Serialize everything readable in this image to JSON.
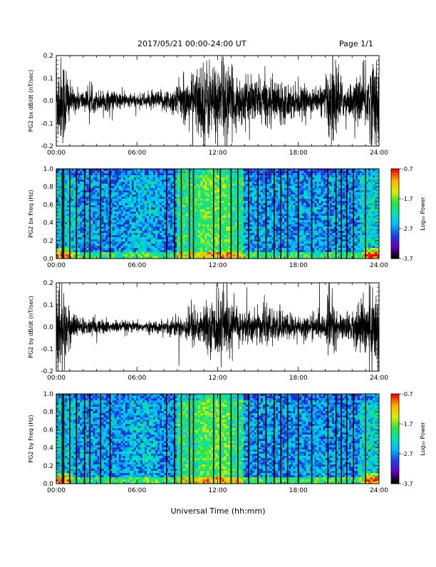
{
  "header": {
    "title": "2017/05/21   00:00-24:00 UT",
    "page_label": "Page 1/1"
  },
  "x_axis_title": "Universal Time (hh:mm)",
  "colors": {
    "waveform": "#000000",
    "spectrogram_background": "#1630c8",
    "colormap": [
      "#000000",
      "#6a00b8",
      "#1d3fe8",
      "#00b7ff",
      "#00e6b5",
      "#2fe43c",
      "#d8ef00",
      "#ffb000",
      "#ff0000"
    ]
  },
  "chart_data": [
    {
      "type": "line",
      "panel": "top waveform",
      "title": "",
      "ylabel": "PG2 bx dB/dt (nT/sec)",
      "xlabel": "",
      "x_ticks": [
        "00:00",
        "06:00",
        "12:00",
        "18:00",
        "24:00"
      ],
      "y_ticks": [
        "0.2",
        "0.1",
        "0.0",
        "-0.1",
        "-0.2"
      ],
      "xlim": [
        0,
        24
      ],
      "ylim": [
        -0.2,
        0.2
      ],
      "grid": false,
      "series": [
        {
          "values_desc": "dense waveform",
          "envelope_hours": [
            0,
            0.7,
            1.1,
            2,
            3,
            4,
            5,
            6,
            7,
            8,
            8.5,
            9,
            10,
            10.5,
            11,
            11.8,
            12,
            12.5,
            13,
            14,
            14.5,
            15,
            16,
            16.5,
            17,
            18,
            19,
            20,
            20.3,
            20.8,
            21.3,
            22,
            22.5,
            23,
            23.5,
            24
          ],
          "envelope_amplitude": [
            0.21,
            0.21,
            0.06,
            0.05,
            0.05,
            0.05,
            0.04,
            0.03,
            0.04,
            0.05,
            0.06,
            0.08,
            0.11,
            0.17,
            0.2,
            0.18,
            0.17,
            0.2,
            0.14,
            0.11,
            0.1,
            0.11,
            0.1,
            0.1,
            0.09,
            0.07,
            0.06,
            0.07,
            0.21,
            0.2,
            0.08,
            0.08,
            0.1,
            0.16,
            0.2,
            0.21
          ]
        }
      ]
    },
    {
      "type": "heatmap",
      "panel": "top spectrogram",
      "title": "",
      "ylabel": "PG2 bx Freq (Hz)",
      "xlabel": "",
      "x_ticks": [
        "00:00",
        "06:00",
        "12:00",
        "18:00",
        "24:00"
      ],
      "y_ticks": [
        "1.0",
        "0.8",
        "0.6",
        "0.4",
        "0.2",
        "0.0"
      ],
      "xlim": [
        0,
        24
      ],
      "ylim": [
        0.0,
        1.0
      ],
      "colorbar": {
        "label": "Log₁₀ Power",
        "ticks": [
          "-0.7",
          "-1.7",
          "-2.7",
          "-3.7"
        ],
        "range": [
          -3.7,
          -0.7
        ]
      },
      "vertical_lines_hours": [
        0.45,
        0.55,
        1.0,
        1.5,
        2.1,
        2.5,
        3.3,
        4.0,
        8.2,
        8.8,
        9.3,
        9.9,
        10.2,
        11.7,
        12.2,
        13.0,
        13.5,
        14.3,
        15.0,
        15.6,
        16.2,
        16.7,
        17.2,
        18.0,
        19.0,
        20.2,
        20.8,
        21.2,
        21.6,
        22.1,
        23.0
      ]
    },
    {
      "type": "line",
      "panel": "bottom waveform",
      "title": "",
      "ylabel": "PG2 by dB/dt (nT/sec)",
      "xlabel": "",
      "x_ticks": [
        "00:00",
        "06:00",
        "12:00",
        "18:00",
        "24:00"
      ],
      "y_ticks": [
        "0.2",
        "0.1",
        "0.0",
        "-0.1",
        "-0.2"
      ],
      "xlim": [
        0,
        24
      ],
      "ylim": [
        -0.2,
        0.2
      ],
      "grid": false,
      "series": [
        {
          "values_desc": "dense waveform",
          "envelope_hours": [
            0,
            0.5,
            0.9,
            1.5,
            2,
            3,
            4,
            5,
            6,
            7,
            8,
            8.5,
            9,
            9.5,
            10,
            11,
            11.5,
            12,
            12.3,
            13,
            14,
            15,
            16,
            17,
            18,
            19,
            20,
            20.3,
            20.8,
            21.3,
            22,
            22.5,
            23,
            23.5,
            24
          ],
          "envelope_amplitude": [
            0.21,
            0.21,
            0.12,
            0.05,
            0.04,
            0.04,
            0.03,
            0.03,
            0.025,
            0.025,
            0.03,
            0.04,
            0.05,
            0.06,
            0.09,
            0.1,
            0.11,
            0.15,
            0.2,
            0.1,
            0.08,
            0.08,
            0.08,
            0.07,
            0.06,
            0.05,
            0.06,
            0.2,
            0.08,
            0.06,
            0.07,
            0.12,
            0.15,
            0.2,
            0.2
          ]
        }
      ]
    },
    {
      "type": "heatmap",
      "panel": "bottom spectrogram",
      "title": "",
      "ylabel": "PG2 by Freq (Hz)",
      "xlabel": "",
      "x_ticks": [
        "00:00",
        "06:00",
        "12:00",
        "18:00",
        "24:00"
      ],
      "y_ticks": [
        "1.0",
        "0.8",
        "0.6",
        "0.4",
        "0.2",
        "0.0"
      ],
      "xlim": [
        0,
        24
      ],
      "ylim": [
        0.0,
        1.0
      ],
      "colorbar": {
        "label": "Log₁₀ Power",
        "ticks": [
          "-0.7",
          "-1.7",
          "-2.7",
          "-3.7"
        ],
        "range": [
          -3.7,
          -0.7
        ]
      },
      "vertical_lines_hours": [
        0.45,
        0.55,
        1.0,
        1.5,
        2.1,
        2.5,
        3.3,
        4.0,
        8.2,
        8.8,
        9.3,
        9.9,
        10.2,
        11.7,
        12.2,
        13.0,
        13.5,
        14.3,
        15.0,
        15.6,
        16.2,
        16.7,
        17.2,
        18.0,
        19.0,
        20.2,
        20.8,
        21.2,
        21.6,
        22.1,
        23.0
      ]
    }
  ]
}
